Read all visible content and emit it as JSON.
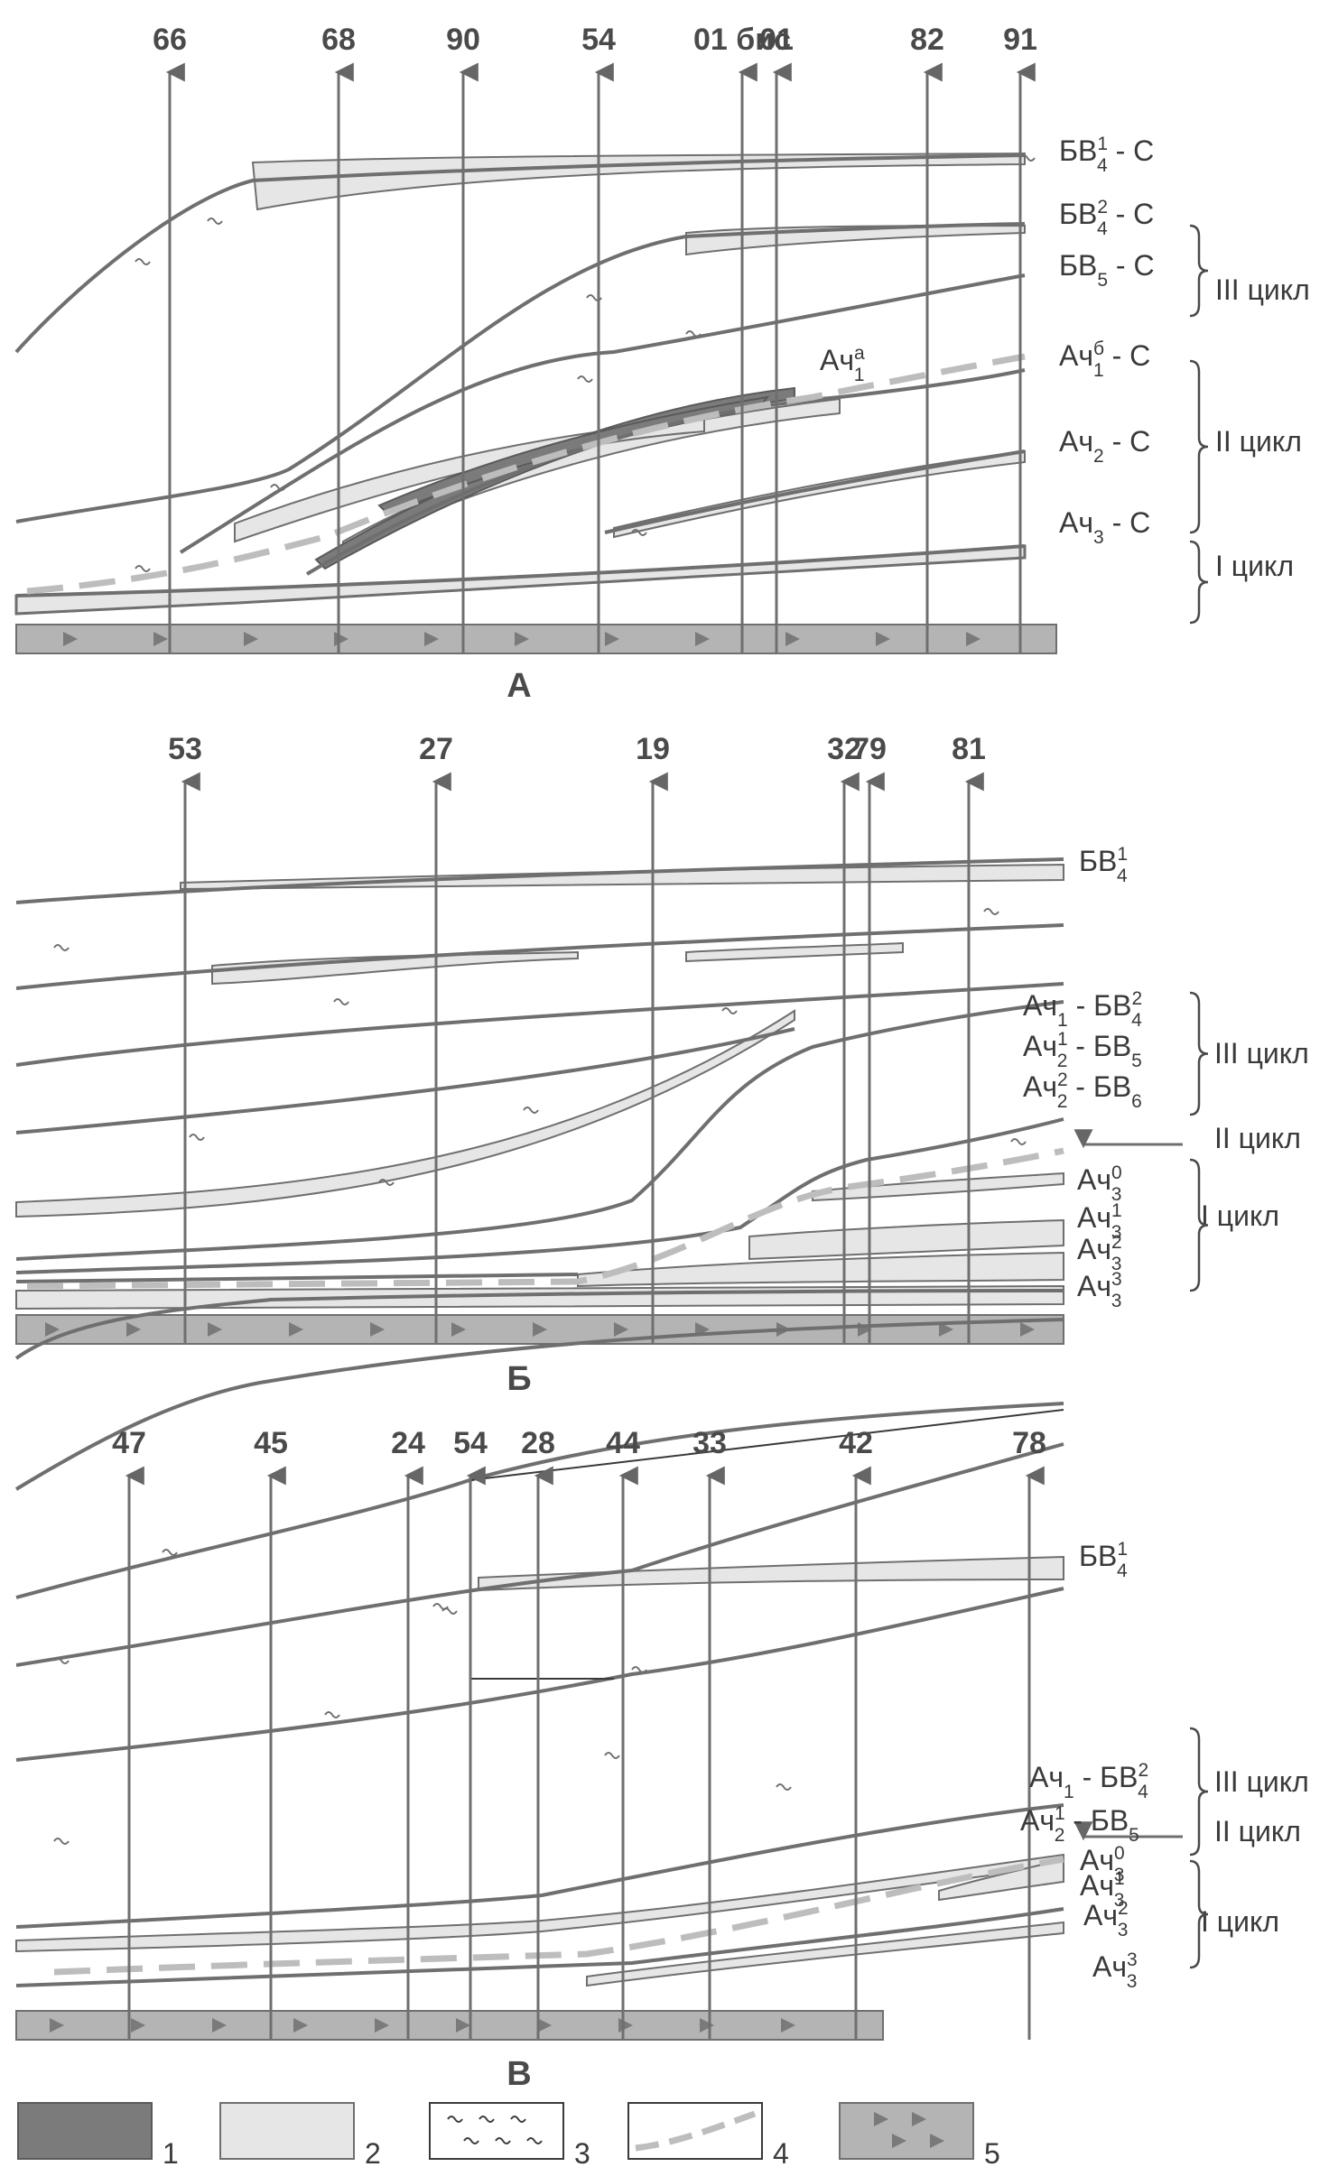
{
  "panels": [
    {
      "letter": "А",
      "wells": [
        "66",
        "68",
        "90",
        "54",
        "01 бис",
        "01",
        "82",
        "91"
      ],
      "layers": [
        {
          "base": "БВ",
          "sup": "1",
          "sub": "4",
          "tail": "- С"
        },
        {
          "base": "БВ",
          "sup": "2",
          "sub": "4",
          "tail": "- С"
        },
        {
          "base": "БВ",
          "sup": "",
          "sub": "5",
          "tail": "- С"
        },
        {
          "base": "Ач",
          "sup": "б",
          "sub": "1",
          "tail": "- С"
        },
        {
          "base": "Ач",
          "sup": "",
          "sub": "2",
          "tail": "- С"
        },
        {
          "base": "Ач",
          "sup": "",
          "sub": "3",
          "tail": "- С"
        }
      ],
      "inline": {
        "base": "Ач",
        "sup": "а",
        "sub": "1"
      },
      "cycles": [
        "III цикл",
        "II цикл",
        "I цикл"
      ]
    },
    {
      "letter": "Б",
      "wells": [
        "53",
        "27",
        "19",
        "32",
        "79",
        "81"
      ],
      "layers": [
        {
          "base": "БВ",
          "sup": "1",
          "sub": "4",
          "tail": ""
        },
        {
          "base": "Ач",
          "sup": "",
          "sub": "1",
          "tail": "- БВ",
          "tsup": "2",
          "tsub": "4"
        },
        {
          "base": "Ач",
          "sup": "1",
          "sub": "2",
          "tail": "- БВ",
          "tsup": "",
          "tsub": "5"
        },
        {
          "base": "Ач",
          "sup": "2",
          "sub": "2",
          "tail": "- БВ",
          "tsup": "",
          "tsub": "6"
        },
        {
          "base": "Ач",
          "sup": "0",
          "sub": "3",
          "tail": ""
        },
        {
          "base": "Ач",
          "sup": "1",
          "sub": "3",
          "tail": ""
        },
        {
          "base": "Ач",
          "sup": "2",
          "sub": "3",
          "tail": ""
        },
        {
          "base": "Ач",
          "sup": "3",
          "sub": "3",
          "tail": ""
        }
      ],
      "cycles": [
        "III цикл",
        "II цикл",
        "I цикл"
      ]
    },
    {
      "letter": "В",
      "wells": [
        "47",
        "45",
        "24",
        "54",
        "28",
        "44",
        "33",
        "42",
        "78"
      ],
      "layers": [
        {
          "base": "БВ",
          "sup": "1",
          "sub": "4",
          "tail": ""
        },
        {
          "base": "Ач",
          "sup": "",
          "sub": "1",
          "tail": "- БВ",
          "tsup": "2",
          "tsub": "4"
        },
        {
          "base": "Ач",
          "sup": "1",
          "sub": "2",
          "tail": "- БВ",
          "tsup": "",
          "tsub": "5"
        },
        {
          "base": "Ач",
          "sup": "0",
          "sub": "3",
          "tail": ""
        },
        {
          "base": "Ач",
          "sup": "1",
          "sub": "3",
          "tail": ""
        },
        {
          "base": "Ач",
          "sup": "2",
          "sub": "3",
          "tail": ""
        },
        {
          "base": "Ач",
          "sup": "3",
          "sub": "3",
          "tail": ""
        }
      ],
      "cycles": [
        "III цикл",
        "II цикл",
        "I цикл"
      ]
    }
  ],
  "legend": [
    {
      "num": "1",
      "pattern": "dark-fill"
    },
    {
      "num": "2",
      "pattern": "light-fill"
    },
    {
      "num": "3",
      "pattern": "wavy-marks"
    },
    {
      "num": "4",
      "pattern": "dashed-boundary"
    },
    {
      "num": "5",
      "pattern": "triangles-basement"
    }
  ],
  "colors": {
    "line": "#6f6f6f",
    "dark": "#7b7b7b",
    "light": "#e6e6e6",
    "dash": "#bdbdbd",
    "basement": "#b4b4b4",
    "text": "#3a3a3a"
  }
}
